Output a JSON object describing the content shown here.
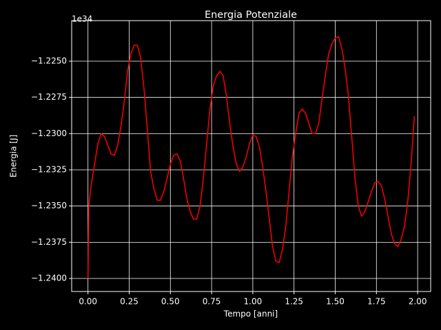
{
  "chart_data": {
    "type": "line",
    "title": "Energia Potenziale",
    "x_label": "Tempo [anni]",
    "y_label": "Energia [J]",
    "y_offset_label": "1e34",
    "x": [
      0,
      0.005,
      0.02,
      0.04,
      0.06,
      0.08,
      0.1,
      0.12,
      0.14,
      0.16,
      0.18,
      0.2,
      0.22,
      0.24,
      0.26,
      0.28,
      0.3,
      0.32,
      0.34,
      0.36,
      0.38,
      0.4,
      0.42,
      0.44,
      0.46,
      0.48,
      0.5,
      0.52,
      0.54,
      0.56,
      0.58,
      0.6,
      0.62,
      0.64,
      0.66,
      0.68,
      0.7,
      0.72,
      0.74,
      0.76,
      0.78,
      0.8,
      0.82,
      0.84,
      0.86,
      0.88,
      0.9,
      0.92,
      0.94,
      0.96,
      0.98,
      1.0,
      1.02,
      1.04,
      1.06,
      1.08,
      1.1,
      1.12,
      1.14,
      1.16,
      1.18,
      1.2,
      1.22,
      1.24,
      1.26,
      1.28,
      1.3,
      1.32,
      1.34,
      1.36,
      1.38,
      1.4,
      1.42,
      1.44,
      1.46,
      1.48,
      1.5,
      1.52,
      1.54,
      1.56,
      1.58,
      1.6,
      1.62,
      1.64,
      1.66,
      1.68,
      1.7,
      1.72,
      1.74,
      1.76,
      1.78,
      1.8,
      1.82,
      1.84,
      1.86,
      1.88,
      1.9,
      1.92,
      1.94,
      1.96,
      1.98
    ],
    "series": [
      {
        "name": "Energia",
        "color": "#ff0000",
        "values": [
          -1.24,
          -1.235,
          -1.2335,
          -1.2321,
          -1.2307,
          -1.23,
          -1.2302,
          -1.2308,
          -1.2314,
          -1.2315,
          -1.2308,
          -1.2295,
          -1.2278,
          -1.2257,
          -1.2245,
          -1.2239,
          -1.2239,
          -1.2248,
          -1.2269,
          -1.2297,
          -1.2326,
          -1.2338,
          -1.2346,
          -1.2346,
          -1.234,
          -1.2331,
          -1.2321,
          -1.2315,
          -1.2314,
          -1.2319,
          -1.2331,
          -1.2345,
          -1.2354,
          -1.2359,
          -1.2359,
          -1.235,
          -1.2331,
          -1.2307,
          -1.2283,
          -1.2267,
          -1.226,
          -1.2257,
          -1.226,
          -1.2274,
          -1.2293,
          -1.2309,
          -1.2321,
          -1.2326,
          -1.2323,
          -1.2316,
          -1.2307,
          -1.2301,
          -1.2302,
          -1.2309,
          -1.2323,
          -1.234,
          -1.2359,
          -1.2378,
          -1.2388,
          -1.2389,
          -1.238,
          -1.2364,
          -1.234,
          -1.2316,
          -1.23,
          -1.2286,
          -1.2283,
          -1.2286,
          -1.2293,
          -1.23,
          -1.23,
          -1.2293,
          -1.2276,
          -1.226,
          -1.2245,
          -1.2238,
          -1.2234,
          -1.2233,
          -1.2241,
          -1.2255,
          -1.2274,
          -1.2302,
          -1.2331,
          -1.235,
          -1.2357,
          -1.2354,
          -1.2347,
          -1.234,
          -1.2334,
          -1.2333,
          -1.2336,
          -1.2345,
          -1.2357,
          -1.2369,
          -1.2376,
          -1.2378,
          -1.2373,
          -1.2364,
          -1.2347,
          -1.2321,
          -1.2288
        ]
      }
    ],
    "xlim": [
      -0.099,
      2.079
    ],
    "ylim": [
      -1.2409,
      -1.2222
    ],
    "xticks": [
      {
        "value": 0,
        "label": "0.00"
      },
      {
        "value": 0.25,
        "label": "0.25"
      },
      {
        "value": 0.5,
        "label": "0.50"
      },
      {
        "value": 0.75,
        "label": "0.75"
      },
      {
        "value": 1,
        "label": "1.00"
      },
      {
        "value": 1.25,
        "label": "1.25"
      },
      {
        "value": 1.5,
        "label": "1.50"
      },
      {
        "value": 1.75,
        "label": "1.75"
      },
      {
        "value": 2,
        "label": "2.00"
      }
    ],
    "yticks": [
      {
        "value": -1.225,
        "label": "−1.2250"
      },
      {
        "value": -1.2275,
        "label": "−1.2275"
      },
      {
        "value": -1.23,
        "label": "−1.2300"
      },
      {
        "value": -1.2325,
        "label": "−1.2325"
      },
      {
        "value": -1.235,
        "label": "−1.2350"
      },
      {
        "value": -1.2375,
        "label": "−1.2375"
      },
      {
        "value": -1.24,
        "label": "−1.2400"
      }
    ],
    "grid": true
  }
}
